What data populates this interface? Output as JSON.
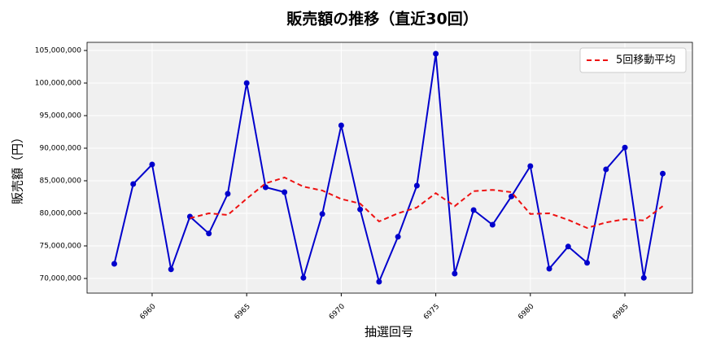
{
  "chart_data": {
    "type": "line",
    "title": "販売額の推移（直近30回）",
    "x_label": "抽選回号",
    "y_label": "販売額（円）",
    "x": [
      6958,
      6959,
      6960,
      6961,
      6962,
      6963,
      6964,
      6965,
      6966,
      6967,
      6968,
      6969,
      6970,
      6971,
      6972,
      6973,
      6974,
      6975,
      6976,
      6977,
      6978,
      6979,
      6980,
      6981,
      6982,
      6983,
      6984,
      6985,
      6986,
      6987
    ],
    "series": [
      {
        "name": "販売額",
        "color": "#0000cc",
        "style": "solid",
        "markers": true,
        "values": [
          72250000,
          84500000,
          87500000,
          71400000,
          79500000,
          76900000,
          83000000,
          100000000,
          84000000,
          83250000,
          70100000,
          79900000,
          93500000,
          80600000,
          69500000,
          76400000,
          84250000,
          104500000,
          70750000,
          80500000,
          78250000,
          82600000,
          87250000,
          71500000,
          74900000,
          72400000,
          86750000,
          90100000,
          70100000,
          86100000
        ]
      },
      {
        "name": "5回移動平均",
        "color": "#ee1111",
        "style": "dashed",
        "markers": false,
        "legend": true,
        "values": [
          null,
          null,
          null,
          null,
          79250000,
          80000000,
          79750000,
          82250000,
          84600000,
          85500000,
          84100000,
          83500000,
          82200000,
          81500000,
          78750000,
          80000000,
          80900000,
          83100000,
          81100000,
          83400000,
          83600000,
          83250000,
          79900000,
          80000000,
          79000000,
          77750000,
          78600000,
          79100000,
          78900000,
          81100000
        ]
      }
    ],
    "xlim": [
      6956.56,
      6988.57
    ],
    "ylim": [
      67750000,
      106250000
    ],
    "xticks": [
      6960,
      6965,
      6970,
      6975,
      6980,
      6985
    ],
    "yticks": [
      {
        "value": 70000000,
        "label": "70,000,000"
      },
      {
        "value": 75000000,
        "label": "75,000,000"
      },
      {
        "value": 80000000,
        "label": "80,000,000"
      },
      {
        "value": 85000000,
        "label": "85,000,000"
      },
      {
        "value": 90000000,
        "label": "90,000,000"
      },
      {
        "value": 95000000,
        "label": "95,000,000"
      },
      {
        "value": 100000000,
        "label": "100,000,000"
      },
      {
        "value": 105000000,
        "label": "105,000,000"
      }
    ],
    "grid": true,
    "legend_position": "upper-right"
  }
}
